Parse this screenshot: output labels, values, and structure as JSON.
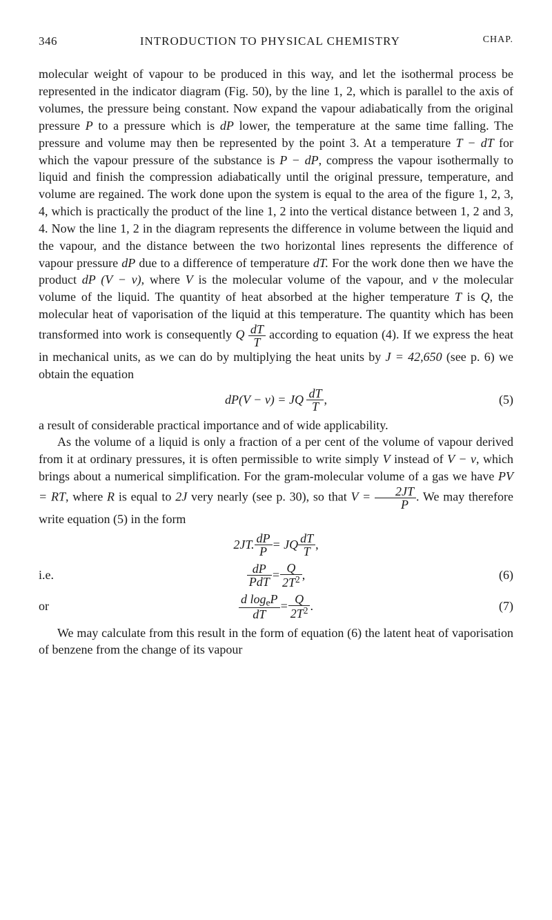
{
  "header": {
    "page_number": "346",
    "title": "INTRODUCTION TO PHYSICAL CHEMISTRY",
    "chap": "CHAP."
  },
  "para1_a": "molecular weight of vapour to be produced in this way, and let the isothermal process be represented in the indicator diagram (Fig. 50), by the line 1, 2, which is parallel to the axis of volumes, the pressure being constant. Now expand the vapour adiabatically from the original pressure ",
  "m_P": "P",
  "para1_b": " to a pressure which is ",
  "m_dP": "dP",
  "para1_c": " lower, the temperature at the same time falling. The pressure and volume may then be represented by the point 3. At a temperature ",
  "m_TmdT": "T − dT",
  "para1_d": " for which the vapour pressure of the substance is ",
  "m_PmdP": "P − dP",
  "para1_e": ", compress the vapour isothermally to liquid and finish the compression adiabatically until the original pressure, temperature, and volume are regained. The work done upon the system is equal to the area of the figure 1, 2, 3, 4, which is practically the product of the line 1, 2 into the vertical distance between 1, 2 and 3, 4. Now the line 1, 2 in the diagram represents the difference in volume between the liquid and the vapour, and the distance between the two horizontal lines represents the difference of vapour pressure ",
  "para1_f": " due to a difference of temperature ",
  "m_dTdot": "dT.",
  "para1_g": " For the work done then we have the product ",
  "m_dPVv": "dP (V − v)",
  "para1_h": ", where ",
  "m_V": "V",
  "para1_i": " is the molecular volume of the vapour, and ",
  "m_v": "v",
  "para1_j": " the molecular volume of the liquid. The quantity of heat absorbed at the higher temperature ",
  "m_T": "T",
  "para1_k": " is ",
  "m_Q": "Q",
  "para1_l": ", the molecular heat of vaporisation of the liquid at this temperature. The quantity which has been transformed into work is consequently ",
  "para1_m": " according to equation (4). If we express the heat in mechanical units, as we can do by multiplying the heat units by ",
  "m_J42650": "J = 42,650",
  "para1_n": " (see p. 6) we obtain the equation",
  "eq5_lhs": "dP(V − v) = JQ",
  "eq5_num": "dT",
  "eq5_den": "T",
  "eq5_comma": ",",
  "eq5_label": "(5)",
  "para2_a": "a result of considerable practical importance and of wide applicability.",
  "para3_a": "As the volume of a liquid is only a fraction of a per cent of the volume of vapour derived from it at ordinary pressures, it is often permissible to write simply ",
  "para3_b": " instead of ",
  "m_Vmv": "V − v",
  "para3_c": ", which brings about a numerical simplification. For the gram-molecular volume of a gas we have ",
  "m_PVRT": "PV = RT",
  "para3_d": ", where ",
  "m_R": "R",
  "para3_e": " is equal to ",
  "m_2J": "2J",
  "para3_f": " very nearly (see p. 30), so that ",
  "m_Veq": "V =",
  "frac_2JT_num": "2JT",
  "frac_2JT_den": "P",
  "para3_g": ". We may therefore write equation (5) in the form",
  "eqA_lhs": "2JT.",
  "eqA_num1": "dP",
  "eqA_den1": "P",
  "eqA_mid": " = JQ",
  "eqA_num2": "dT",
  "eqA_den2": "T",
  "ie_label": "i.e.",
  "eq6_num1": "dP",
  "eq6_den1": "PdT",
  "eq6_eq": " = ",
  "eq6_num2": "Q",
  "eq6_den2": "2T",
  "eq6_comma": ",",
  "eq6_label": "(6)",
  "or_label": "or",
  "eq7_num1_a": "d log",
  "eq7_num1_sub": "e",
  "eq7_num1_b": "P",
  "eq7_den1": "dT",
  "eq7_num2": "Q",
  "eq7_den2": "2T",
  "eq7_dot": ".",
  "eq7_label": "(7)",
  "para4": "We may calculate from this result in the form of equation (6) the latent heat of vaporisation of benzene from the change of its vapour"
}
